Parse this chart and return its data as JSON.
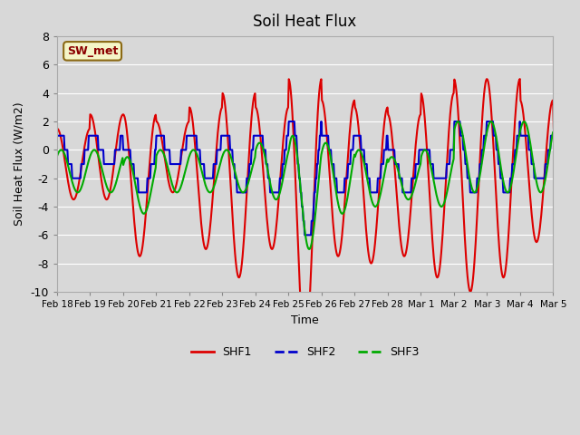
{
  "title": "Soil Heat Flux",
  "ylabel": "Soil Heat Flux (W/m2)",
  "xlabel": "Time",
  "ylim": [
    -10,
    8
  ],
  "plot_bg_color": "#d8d8d8",
  "legend_label": "SW_met",
  "series": {
    "SHF1": {
      "color": "#dd0000",
      "linewidth": 1.5
    },
    "SHF2": {
      "color": "#0000cc",
      "linewidth": 1.5
    },
    "SHF3": {
      "color": "#00aa00",
      "linewidth": 1.5
    }
  },
  "xtick_labels": [
    "Feb 18",
    "Feb 19",
    "Feb 20",
    "Feb 21",
    "Feb 22",
    "Feb 23",
    "Feb 24",
    "Feb 25",
    "Feb 26",
    "Feb 27",
    "Feb 28",
    "Mar 1",
    "Mar 2",
    "Mar 3",
    "Mar 4",
    "Mar 5"
  ],
  "ytick_labels": [
    "-10",
    "-8",
    "-6",
    "-4",
    "-2",
    "0",
    "2",
    "4",
    "6",
    "8"
  ],
  "ytick_values": [
    -10,
    -8,
    -6,
    -4,
    -2,
    0,
    2,
    4,
    6,
    8
  ]
}
